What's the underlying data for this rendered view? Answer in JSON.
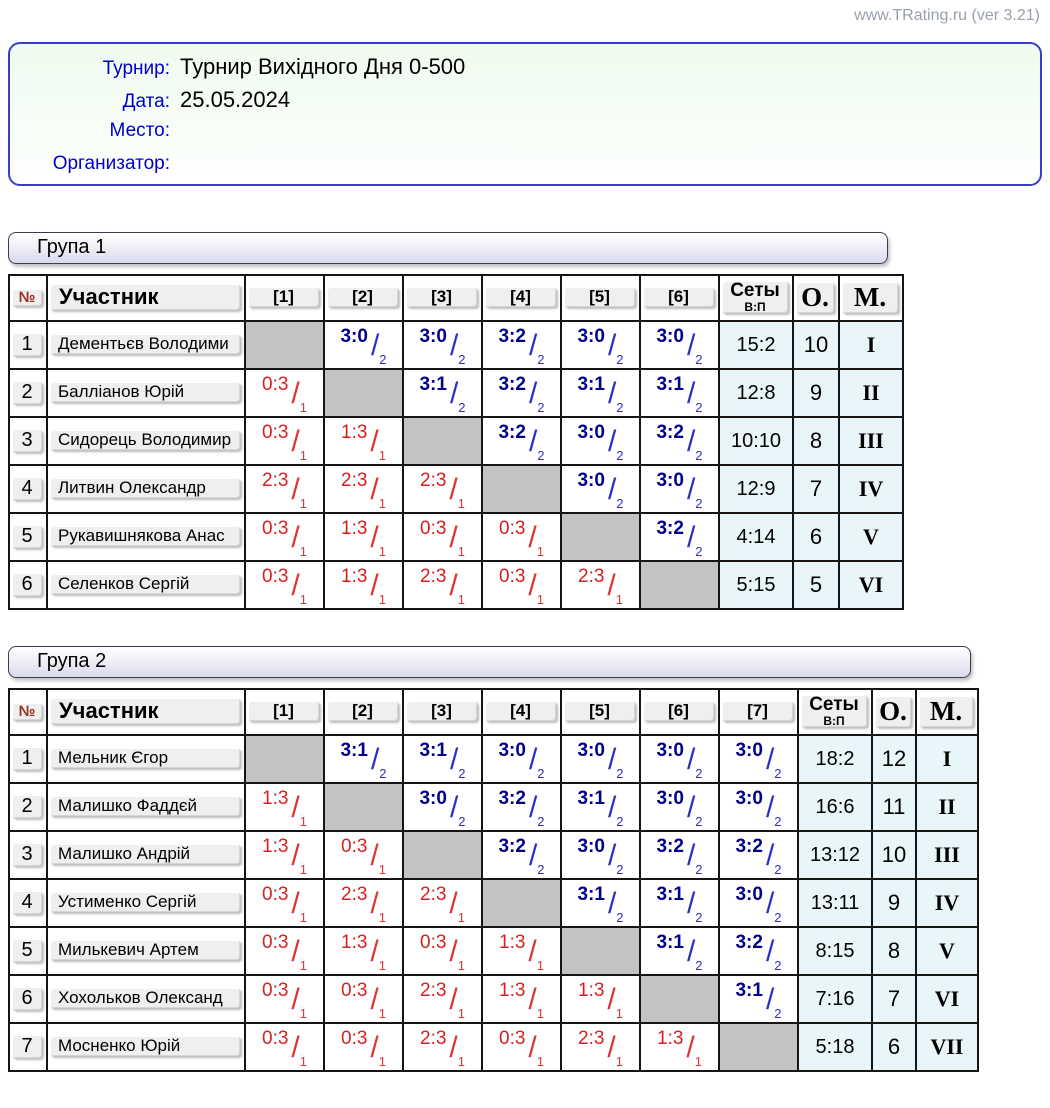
{
  "watermark": "www.TRating.ru (ver 3.21)",
  "info": {
    "rows": [
      {
        "label": "Турнир:",
        "value": "Турнир Вихідного Дня 0-500"
      },
      {
        "label": "Дата:",
        "value": "25.05.2024"
      },
      {
        "label": "Место:",
        "value": ""
      },
      {
        "label": "Организатор:",
        "value": ""
      }
    ]
  },
  "columns": {
    "num": "№",
    "participant": "Участник",
    "sets": "Сеты",
    "sets_sub": "В:П",
    "points_label": "О.",
    "place_label": "М."
  },
  "glyphs": {
    "slash": "/"
  },
  "colors": {
    "win_score": "#00008b",
    "loss_score": "#d42020",
    "label_blue": "#0000c8",
    "diagonal_gray": "#c3c3c3",
    "summary_bg": "#e9f6f9",
    "info_border": "#3c3ccc",
    "watermark_gray": "#98a0ac"
  },
  "groups": [
    {
      "title": "Група 1",
      "match_cols": [
        "[1]",
        "[2]",
        "[3]",
        "[4]",
        "[5]",
        "[6]"
      ],
      "rows": [
        {
          "num": "1",
          "name": "Дементьєв Володими",
          "results": [
            null,
            {
              "s": "3:0",
              "p": "2",
              "r": "w"
            },
            {
              "s": "3:0",
              "p": "2",
              "r": "w"
            },
            {
              "s": "3:2",
              "p": "2",
              "r": "w"
            },
            {
              "s": "3:0",
              "p": "2",
              "r": "w"
            },
            {
              "s": "3:0",
              "p": "2",
              "r": "w"
            }
          ],
          "sets": "15:2",
          "points": "10",
          "place": "I"
        },
        {
          "num": "2",
          "name": "Балліанов Юрій",
          "results": [
            {
              "s": "0:3",
              "p": "1",
              "r": "l"
            },
            null,
            {
              "s": "3:1",
              "p": "2",
              "r": "w"
            },
            {
              "s": "3:2",
              "p": "2",
              "r": "w"
            },
            {
              "s": "3:1",
              "p": "2",
              "r": "w"
            },
            {
              "s": "3:1",
              "p": "2",
              "r": "w"
            }
          ],
          "sets": "12:8",
          "points": "9",
          "place": "II"
        },
        {
          "num": "3",
          "name": "Сидорець Володимир",
          "results": [
            {
              "s": "0:3",
              "p": "1",
              "r": "l"
            },
            {
              "s": "1:3",
              "p": "1",
              "r": "l"
            },
            null,
            {
              "s": "3:2",
              "p": "2",
              "r": "w"
            },
            {
              "s": "3:0",
              "p": "2",
              "r": "w"
            },
            {
              "s": "3:2",
              "p": "2",
              "r": "w"
            }
          ],
          "sets": "10:10",
          "points": "8",
          "place": "III"
        },
        {
          "num": "4",
          "name": "Литвин Олександр",
          "results": [
            {
              "s": "2:3",
              "p": "1",
              "r": "l"
            },
            {
              "s": "2:3",
              "p": "1",
              "r": "l"
            },
            {
              "s": "2:3",
              "p": "1",
              "r": "l"
            },
            null,
            {
              "s": "3:0",
              "p": "2",
              "r": "w"
            },
            {
              "s": "3:0",
              "p": "2",
              "r": "w"
            }
          ],
          "sets": "12:9",
          "points": "7",
          "place": "IV"
        },
        {
          "num": "5",
          "name": "Рукавишнякова Анас",
          "results": [
            {
              "s": "0:3",
              "p": "1",
              "r": "l"
            },
            {
              "s": "1:3",
              "p": "1",
              "r": "l"
            },
            {
              "s": "0:3",
              "p": "1",
              "r": "l"
            },
            {
              "s": "0:3",
              "p": "1",
              "r": "l"
            },
            null,
            {
              "s": "3:2",
              "p": "2",
              "r": "w"
            }
          ],
          "sets": "4:14",
          "points": "6",
          "place": "V"
        },
        {
          "num": "6",
          "name": "Селенков Сергій",
          "results": [
            {
              "s": "0:3",
              "p": "1",
              "r": "l"
            },
            {
              "s": "1:3",
              "p": "1",
              "r": "l"
            },
            {
              "s": "2:3",
              "p": "1",
              "r": "l"
            },
            {
              "s": "0:3",
              "p": "1",
              "r": "l"
            },
            {
              "s": "2:3",
              "p": "1",
              "r": "l"
            },
            null
          ],
          "sets": "5:15",
          "points": "5",
          "place": "VI"
        }
      ]
    },
    {
      "title": "Група 2",
      "match_cols": [
        "[1]",
        "[2]",
        "[3]",
        "[4]",
        "[5]",
        "[6]",
        "[7]"
      ],
      "rows": [
        {
          "num": "1",
          "name": "Мельник Єгор",
          "results": [
            null,
            {
              "s": "3:1",
              "p": "2",
              "r": "w"
            },
            {
              "s": "3:1",
              "p": "2",
              "r": "w"
            },
            {
              "s": "3:0",
              "p": "2",
              "r": "w"
            },
            {
              "s": "3:0",
              "p": "2",
              "r": "w"
            },
            {
              "s": "3:0",
              "p": "2",
              "r": "w"
            },
            {
              "s": "3:0",
              "p": "2",
              "r": "w"
            }
          ],
          "sets": "18:2",
          "points": "12",
          "place": "I"
        },
        {
          "num": "2",
          "name": "Малишко Фаддєй",
          "results": [
            {
              "s": "1:3",
              "p": "1",
              "r": "l"
            },
            null,
            {
              "s": "3:0",
              "p": "2",
              "r": "w"
            },
            {
              "s": "3:2",
              "p": "2",
              "r": "w"
            },
            {
              "s": "3:1",
              "p": "2",
              "r": "w"
            },
            {
              "s": "3:0",
              "p": "2",
              "r": "w"
            },
            {
              "s": "3:0",
              "p": "2",
              "r": "w"
            }
          ],
          "sets": "16:6",
          "points": "11",
          "place": "II"
        },
        {
          "num": "3",
          "name": "Малишко Андрій",
          "results": [
            {
              "s": "1:3",
              "p": "1",
              "r": "l"
            },
            {
              "s": "0:3",
              "p": "1",
              "r": "l"
            },
            null,
            {
              "s": "3:2",
              "p": "2",
              "r": "w"
            },
            {
              "s": "3:0",
              "p": "2",
              "r": "w"
            },
            {
              "s": "3:2",
              "p": "2",
              "r": "w"
            },
            {
              "s": "3:2",
              "p": "2",
              "r": "w"
            }
          ],
          "sets": "13:12",
          "points": "10",
          "place": "III"
        },
        {
          "num": "4",
          "name": "Устименко Сергій",
          "results": [
            {
              "s": "0:3",
              "p": "1",
              "r": "l"
            },
            {
              "s": "2:3",
              "p": "1",
              "r": "l"
            },
            {
              "s": "2:3",
              "p": "1",
              "r": "l"
            },
            null,
            {
              "s": "3:1",
              "p": "2",
              "r": "w"
            },
            {
              "s": "3:1",
              "p": "2",
              "r": "w"
            },
            {
              "s": "3:0",
              "p": "2",
              "r": "w"
            }
          ],
          "sets": "13:11",
          "points": "9",
          "place": "IV"
        },
        {
          "num": "5",
          "name": "Милькевич Артем",
          "results": [
            {
              "s": "0:3",
              "p": "1",
              "r": "l"
            },
            {
              "s": "1:3",
              "p": "1",
              "r": "l"
            },
            {
              "s": "0:3",
              "p": "1",
              "r": "l"
            },
            {
              "s": "1:3",
              "p": "1",
              "r": "l"
            },
            null,
            {
              "s": "3:1",
              "p": "2",
              "r": "w"
            },
            {
              "s": "3:2",
              "p": "2",
              "r": "w"
            }
          ],
          "sets": "8:15",
          "points": "8",
          "place": "V"
        },
        {
          "num": "6",
          "name": "Хохольков Олександ",
          "results": [
            {
              "s": "0:3",
              "p": "1",
              "r": "l"
            },
            {
              "s": "0:3",
              "p": "1",
              "r": "l"
            },
            {
              "s": "2:3",
              "p": "1",
              "r": "l"
            },
            {
              "s": "1:3",
              "p": "1",
              "r": "l"
            },
            {
              "s": "1:3",
              "p": "1",
              "r": "l"
            },
            null,
            {
              "s": "3:1",
              "p": "2",
              "r": "w"
            }
          ],
          "sets": "7:16",
          "points": "7",
          "place": "VI"
        },
        {
          "num": "7",
          "name": "Мосненко Юрій",
          "results": [
            {
              "s": "0:3",
              "p": "1",
              "r": "l"
            },
            {
              "s": "0:3",
              "p": "1",
              "r": "l"
            },
            {
              "s": "2:3",
              "p": "1",
              "r": "l"
            },
            {
              "s": "0:3",
              "p": "1",
              "r": "l"
            },
            {
              "s": "2:3",
              "p": "1",
              "r": "l"
            },
            {
              "s": "1:3",
              "p": "1",
              "r": "l"
            },
            null
          ],
          "sets": "5:18",
          "points": "6",
          "place": "VII"
        }
      ]
    }
  ]
}
